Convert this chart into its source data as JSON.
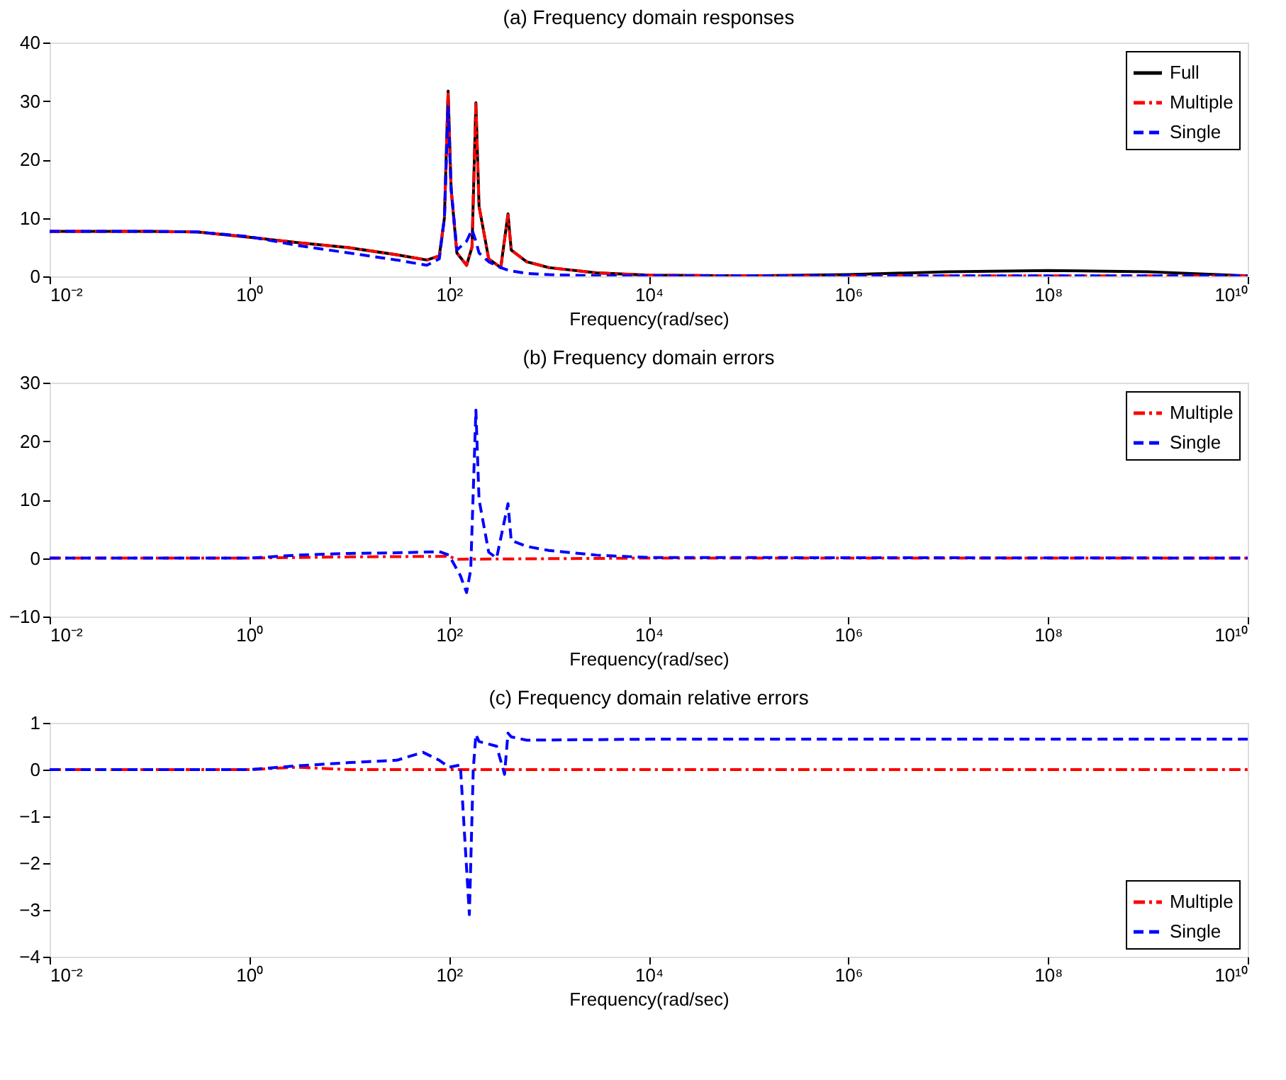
{
  "chart_data": [
    {
      "type": "line",
      "title": "(a) Frequency domain responses",
      "xlabel": "Frequency(rad/sec)",
      "log": "x",
      "legend": "top right",
      "grid": false,
      "xlim": [
        0.01,
        10000000000
      ],
      "xticks": [
        {
          "value": 0.01,
          "label": "10⁻²"
        },
        {
          "value": 1,
          "label": "10⁰"
        },
        {
          "value": 100,
          "label": "10²"
        },
        {
          "value": 10000,
          "label": "10⁴"
        },
        {
          "value": 1000000,
          "label": "10⁶"
        },
        {
          "value": 100000000,
          "label": "10⁸"
        },
        {
          "value": 10000000000,
          "label": "10¹⁰"
        }
      ],
      "ylim": [
        0,
        40
      ],
      "yticks": [
        0,
        10,
        20,
        30,
        40
      ],
      "series": [
        {
          "name": "Full",
          "color": "#000000",
          "line_style": "solid",
          "x": [
            0.01,
            0.1,
            0.3,
            1,
            3,
            10,
            30,
            60,
            80,
            90,
            98,
            105,
            120,
            150,
            170,
            186,
            200,
            250,
            330,
            390,
            420,
            600,
            1000,
            3000,
            10000,
            100000,
            1000000,
            10000000,
            100000000,
            1000000000,
            10000000000
          ],
          "values": [
            7.7,
            7.7,
            7.6,
            6.7,
            5.8,
            4.9,
            3.7,
            2.8,
            3.5,
            10,
            31.7,
            15,
            4,
            1.9,
            5,
            29.7,
            12,
            3,
            1.5,
            10.7,
            4.5,
            2.5,
            1.5,
            0.6,
            0.2,
            0.1,
            0.3,
            0.8,
            1.0,
            0.8,
            0.1
          ]
        },
        {
          "name": "Multiple",
          "color": "#ff0000",
          "line_style": "dashdot",
          "x": [
            0.01,
            0.1,
            0.3,
            1,
            3,
            10,
            30,
            60,
            80,
            90,
            98,
            105,
            120,
            150,
            170,
            186,
            200,
            250,
            330,
            390,
            420,
            600,
            1000,
            3000,
            10000,
            100000,
            1000000,
            10000000,
            100000000,
            1000000000,
            10000000000
          ],
          "values": [
            7.7,
            7.7,
            7.6,
            6.7,
            5.8,
            4.9,
            3.7,
            2.8,
            3.5,
            10,
            31.5,
            15,
            4,
            1.9,
            5,
            29.5,
            12,
            3,
            1.5,
            10.5,
            4.5,
            2.5,
            1.5,
            0.6,
            0.2,
            0.1,
            0.1,
            0.1,
            0.1,
            0.1,
            0.1
          ]
        },
        {
          "name": "Single",
          "color": "#0000ff",
          "line_style": "dashed",
          "x": [
            0.01,
            0.1,
            0.3,
            1,
            3,
            10,
            30,
            60,
            80,
            90,
            98,
            105,
            120,
            150,
            170,
            186,
            200,
            250,
            330,
            400,
            600,
            1000,
            3000,
            10000,
            1000000,
            10000000000
          ],
          "values": [
            7.7,
            7.7,
            7.6,
            6.8,
            5.3,
            4,
            2.8,
            1.9,
            3,
            10,
            29,
            15,
            4.5,
            6,
            8,
            6,
            4,
            2.5,
            1.5,
            1,
            0.5,
            0.3,
            0.1,
            0.1,
            0.1,
            0.1
          ]
        }
      ]
    },
    {
      "type": "line",
      "title": "(b) Frequency domain errors",
      "xlabel": "Frequency(rad/sec)",
      "log": "x",
      "legend": "top right",
      "grid": false,
      "xlim": [
        0.01,
        10000000000
      ],
      "xticks": [
        {
          "value": 0.01,
          "label": "10⁻²"
        },
        {
          "value": 1,
          "label": "10⁰"
        },
        {
          "value": 100,
          "label": "10²"
        },
        {
          "value": 10000,
          "label": "10⁴"
        },
        {
          "value": 1000000,
          "label": "10⁶"
        },
        {
          "value": 100000000,
          "label": "10⁸"
        },
        {
          "value": 10000000000,
          "label": "10¹⁰"
        }
      ],
      "ylim": [
        -10,
        30
      ],
      "yticks": [
        -10,
        0,
        10,
        20,
        30
      ],
      "series": [
        {
          "name": "Multiple",
          "color": "#ff0000",
          "line_style": "dashdot",
          "x": [
            0.01,
            1,
            10,
            100,
            120,
            10000,
            10000000000
          ],
          "values": [
            0,
            0,
            0.2,
            0.3,
            -0.2,
            0,
            0
          ]
        },
        {
          "name": "Single",
          "color": "#0000ff",
          "line_style": "dashed",
          "x": [
            0.01,
            1,
            3,
            10,
            30,
            80,
            100,
            130,
            150,
            165,
            186,
            200,
            250,
            300,
            390,
            420,
            600,
            1000,
            3000,
            10000,
            10000000000
          ],
          "values": [
            0,
            0,
            0.5,
            0.8,
            0.9,
            1.1,
            0.5,
            -3,
            -5.9,
            -2,
            25.3,
            10,
            1,
            0,
            9.3,
            3,
            2,
            1.3,
            0.5,
            0.1,
            0
          ]
        }
      ]
    },
    {
      "type": "line",
      "title": "(c) Frequency domain relative errors",
      "xlabel": "Frequency(rad/sec)",
      "log": "x",
      "legend": "bottom right",
      "grid": false,
      "xlim": [
        0.01,
        10000000000
      ],
      "xticks": [
        {
          "value": 0.01,
          "label": "10⁻²"
        },
        {
          "value": 1,
          "label": "10⁰"
        },
        {
          "value": 100,
          "label": "10²"
        },
        {
          "value": 10000,
          "label": "10⁴"
        },
        {
          "value": 1000000,
          "label": "10⁶"
        },
        {
          "value": 100000000,
          "label": "10⁸"
        },
        {
          "value": 10000000000,
          "label": "10¹⁰"
        }
      ],
      "ylim": [
        -4,
        1
      ],
      "yticks": [
        -4,
        -3,
        -2,
        -1,
        0,
        1
      ],
      "series": [
        {
          "name": "Multiple",
          "color": "#ff0000",
          "line_style": "dashdot",
          "x": [
            0.01,
            1,
            3,
            10,
            100,
            10000000000
          ],
          "values": [
            0,
            0,
            0.05,
            0,
            0,
            0
          ]
        },
        {
          "name": "Single",
          "color": "#0000ff",
          "line_style": "dashed",
          "x": [
            0.01,
            1,
            3,
            10,
            30,
            55,
            80,
            100,
            130,
            160,
            175,
            186,
            200,
            300,
            360,
            390,
            420,
            600,
            10000,
            10000000000
          ],
          "values": [
            0,
            0,
            0.08,
            0.15,
            0.2,
            0.37,
            0.2,
            0.05,
            0.1,
            -3.1,
            0,
            0.75,
            0.6,
            0.5,
            -0.1,
            0.78,
            0.7,
            0.63,
            0.65,
            0.65
          ]
        }
      ]
    }
  ]
}
